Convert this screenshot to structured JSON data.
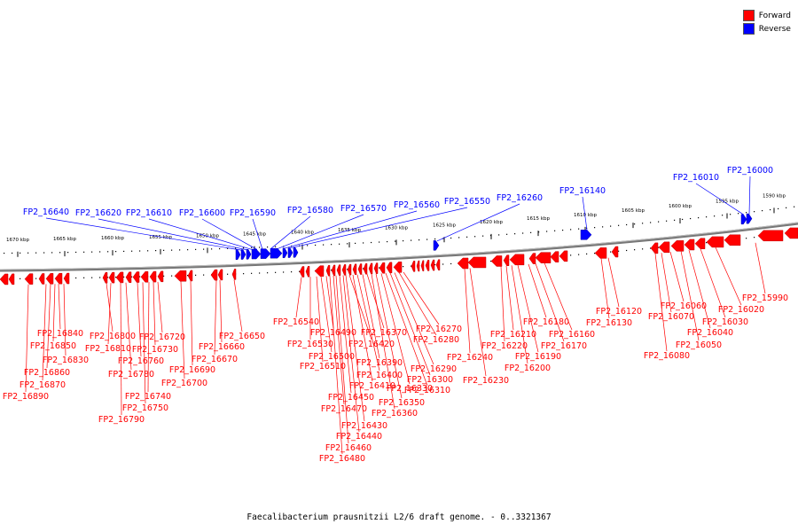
{
  "caption": "Faecalibacterium prausnitzii L2/6 draft genome. - 0..3321367",
  "legend": [
    {
      "label": "Forward",
      "color": "#ff0000"
    },
    {
      "label": "Reverse",
      "color": "#0000ff"
    }
  ],
  "colors": {
    "forward": "#ff0000",
    "reverse": "#0000ff",
    "backbone": "#808080"
  },
  "ticks": [
    "1670 kbp",
    "1665 kbp",
    "1660 kbp",
    "1655 kbp",
    "1650 kbp",
    "1645 kbp",
    "1640 kbp",
    "1635 kbp",
    "1630 kbp",
    "1625 kbp",
    "1620 kbp",
    "1615 kbp",
    "1610 kbp",
    "1605 kbp",
    "1600 kbp",
    "1595 kbp",
    "1590 kbp"
  ],
  "reverse_labels": [
    "FP2_16640",
    "FP2_16620",
    "FP2_16610",
    "FP2_16600",
    "FP2_16590",
    "FP2_16580",
    "FP2_16570",
    "FP2_16560",
    "FP2_16550",
    "FP2_16260",
    "FP2_16140",
    "FP2_16010",
    "FP2_16000"
  ],
  "forward_labels": [
    "FP2_16890",
    "FP2_16870",
    "FP2_16860",
    "FP2_16850",
    "FP2_16840",
    "FP2_16830",
    "FP2_16800",
    "FP2_16810",
    "FP2_16790",
    "FP2_16780",
    "FP2_16760",
    "FP2_16750",
    "FP2_16740",
    "FP2_16730",
    "FP2_16720",
    "FP2_16700",
    "FP2_16690",
    "FP2_16670",
    "FP2_16660",
    "FP2_16650",
    "FP2_16540",
    "FP2_16530",
    "FP2_16510",
    "FP2_16500",
    "FP2_16490",
    "FP2_16480",
    "FP2_16470",
    "FP2_16460",
    "FP2_16450",
    "FP2_16440",
    "FP2_16430",
    "FP2_16420",
    "FP2_16410",
    "FP2_16400",
    "FP2_16390",
    "FP2_16370",
    "FP2_16360",
    "FP2_16350",
    "FP2_16330",
    "FP2_16310",
    "FP2_16300",
    "FP2_16290",
    "FP2_16280",
    "FP2_16270",
    "FP2_16240",
    "FP2_16230",
    "FP2_16220",
    "FP2_16210",
    "FP2_16200",
    "FP2_16190",
    "FP2_16180",
    "FP2_16170",
    "FP2_16160",
    "FP2_16130",
    "FP2_16120",
    "FP2_16080",
    "FP2_16070",
    "FP2_16060",
    "FP2_16050",
    "FP2_16040",
    "FP2_16030",
    "FP2_16020",
    "FP2_15990"
  ]
}
